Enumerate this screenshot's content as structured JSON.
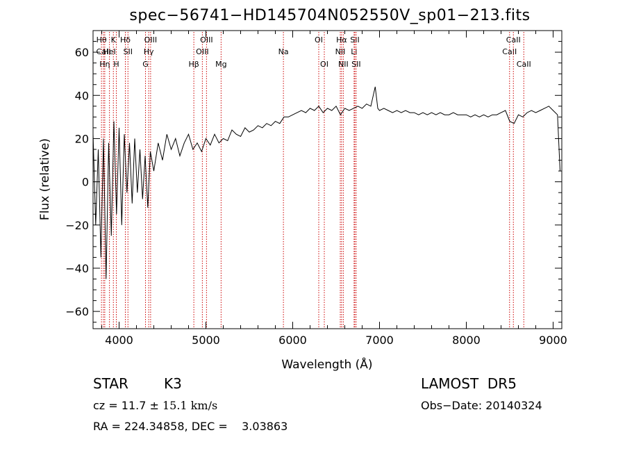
{
  "chart_data": {
    "type": "line",
    "title": "spec−56741−HD145704N052550V_sp01−213.fits",
    "xlabel": "Wavelength (Å)",
    "ylabel": "Flux (relative)",
    "xlim": [
      3700,
      9100
    ],
    "ylim": [
      -68,
      70
    ],
    "xticks": [
      4000,
      5000,
      6000,
      7000,
      8000,
      9000
    ],
    "yticks": [
      -60,
      -40,
      -20,
      0,
      20,
      40,
      60
    ],
    "grid": false,
    "line_color": "#000000",
    "marker_color": "#cc0000",
    "series": [
      {
        "points": [
          [
            3700,
            22
          ],
          [
            3730,
            -20
          ],
          [
            3760,
            15
          ],
          [
            3790,
            -35
          ],
          [
            3820,
            20
          ],
          [
            3850,
            -45
          ],
          [
            3880,
            18
          ],
          [
            3910,
            -25
          ],
          [
            3940,
            28
          ],
          [
            3970,
            -15
          ],
          [
            4000,
            25
          ],
          [
            4030,
            -20
          ],
          [
            4060,
            22
          ],
          [
            4090,
            -5
          ],
          [
            4120,
            18
          ],
          [
            4150,
            -10
          ],
          [
            4180,
            20
          ],
          [
            4210,
            -5
          ],
          [
            4240,
            15
          ],
          [
            4270,
            -8
          ],
          [
            4300,
            12
          ],
          [
            4330,
            -12
          ],
          [
            4360,
            14
          ],
          [
            4400,
            5
          ],
          [
            4450,
            18
          ],
          [
            4500,
            10
          ],
          [
            4550,
            22
          ],
          [
            4600,
            15
          ],
          [
            4650,
            20
          ],
          [
            4700,
            12
          ],
          [
            4750,
            18
          ],
          [
            4800,
            22
          ],
          [
            4850,
            15
          ],
          [
            4900,
            18
          ],
          [
            4950,
            14
          ],
          [
            5000,
            20
          ],
          [
            5050,
            17
          ],
          [
            5100,
            22
          ],
          [
            5150,
            18
          ],
          [
            5200,
            20
          ],
          [
            5250,
            19
          ],
          [
            5300,
            24
          ],
          [
            5350,
            22
          ],
          [
            5400,
            21
          ],
          [
            5450,
            25
          ],
          [
            5500,
            23
          ],
          [
            5550,
            24
          ],
          [
            5600,
            26
          ],
          [
            5650,
            25
          ],
          [
            5700,
            27
          ],
          [
            5750,
            26
          ],
          [
            5800,
            28
          ],
          [
            5850,
            27
          ],
          [
            5900,
            30
          ],
          [
            5950,
            30
          ],
          [
            6000,
            31
          ],
          [
            6050,
            32
          ],
          [
            6100,
            33
          ],
          [
            6150,
            32
          ],
          [
            6200,
            34
          ],
          [
            6250,
            33
          ],
          [
            6300,
            35
          ],
          [
            6350,
            32
          ],
          [
            6400,
            34
          ],
          [
            6450,
            33
          ],
          [
            6500,
            35
          ],
          [
            6550,
            31
          ],
          [
            6600,
            34
          ],
          [
            6650,
            33
          ],
          [
            6700,
            34
          ],
          [
            6750,
            35
          ],
          [
            6800,
            34
          ],
          [
            6850,
            36
          ],
          [
            6900,
            35
          ],
          [
            6950,
            44
          ],
          [
            6980,
            34
          ],
          [
            7000,
            33
          ],
          [
            7050,
            34
          ],
          [
            7100,
            33
          ],
          [
            7150,
            32
          ],
          [
            7200,
            33
          ],
          [
            7250,
            32
          ],
          [
            7300,
            33
          ],
          [
            7350,
            32
          ],
          [
            7400,
            32
          ],
          [
            7450,
            31
          ],
          [
            7500,
            32
          ],
          [
            7550,
            31
          ],
          [
            7600,
            32
          ],
          [
            7650,
            31
          ],
          [
            7700,
            32
          ],
          [
            7750,
            31
          ],
          [
            7800,
            31
          ],
          [
            7850,
            32
          ],
          [
            7900,
            31
          ],
          [
            7950,
            31
          ],
          [
            8000,
            31
          ],
          [
            8050,
            30
          ],
          [
            8100,
            31
          ],
          [
            8150,
            30
          ],
          [
            8200,
            31
          ],
          [
            8250,
            30
          ],
          [
            8300,
            31
          ],
          [
            8350,
            31
          ],
          [
            8400,
            32
          ],
          [
            8450,
            33
          ],
          [
            8500,
            28
          ],
          [
            8550,
            27
          ],
          [
            8600,
            31
          ],
          [
            8650,
            30
          ],
          [
            8700,
            32
          ],
          [
            8750,
            33
          ],
          [
            8800,
            32
          ],
          [
            8850,
            33
          ],
          [
            8900,
            34
          ],
          [
            8950,
            35
          ],
          [
            9000,
            33
          ],
          [
            9050,
            31
          ],
          [
            9080,
            5
          ]
        ]
      }
    ],
    "line_markers": [
      {
        "wl": 3797,
        "label": "Hθ",
        "row": 0
      },
      {
        "wl": 3820,
        "label": "CaII",
        "row": 1
      },
      {
        "wl": 3835,
        "label": "Hη",
        "row": 2
      },
      {
        "wl": 3889,
        "label": "HeI",
        "row": 1
      },
      {
        "wl": 3934,
        "label": "K",
        "row": 0
      },
      {
        "wl": 3968,
        "label": "H",
        "row": 2
      },
      {
        "wl": 4072,
        "label": "Hδ",
        "row": 0
      },
      {
        "wl": 4102,
        "label": "SII",
        "row": 1
      },
      {
        "wl": 4304,
        "label": "G",
        "row": 2
      },
      {
        "wl": 4341,
        "label": "Hγ",
        "row": 1
      },
      {
        "wl": 4363,
        "label": "OIII",
        "row": 0
      },
      {
        "wl": 4861,
        "label": "Hβ",
        "row": 2
      },
      {
        "wl": 4959,
        "label": "OIII",
        "row": 1
      },
      {
        "wl": 5007,
        "label": "OIII",
        "row": 0
      },
      {
        "wl": 5175,
        "label": "Mg",
        "row": 2
      },
      {
        "wl": 5893,
        "label": "Na",
        "row": 1
      },
      {
        "wl": 6300,
        "label": "OI",
        "row": 0
      },
      {
        "wl": 6364,
        "label": "OI",
        "row": 2
      },
      {
        "wl": 6548,
        "label": "NII",
        "row": 1
      },
      {
        "wl": 6563,
        "label": "Hα",
        "row": 0
      },
      {
        "wl": 6583,
        "label": "NII",
        "row": 2
      },
      {
        "wl": 6707,
        "label": "Li",
        "row": 1
      },
      {
        "wl": 6716,
        "label": "SII",
        "row": 0
      },
      {
        "wl": 6731,
        "label": "SII",
        "row": 2
      },
      {
        "wl": 8498,
        "label": "CaII",
        "row": 1
      },
      {
        "wl": 8542,
        "label": "CaII",
        "row": 0
      },
      {
        "wl": 8662,
        "label": "CaII",
        "row": 2
      }
    ]
  },
  "info": {
    "object_class": "STAR",
    "subclass": "K3",
    "survey": "LAMOST  DR5",
    "cz_prefix": "cz = 11.7 ± ",
    "cz_value": "15.1 km/s",
    "obs_date": "Obs−Date: 20140324",
    "radec": "RA = 224.34858, DEC =    3.03863"
  }
}
